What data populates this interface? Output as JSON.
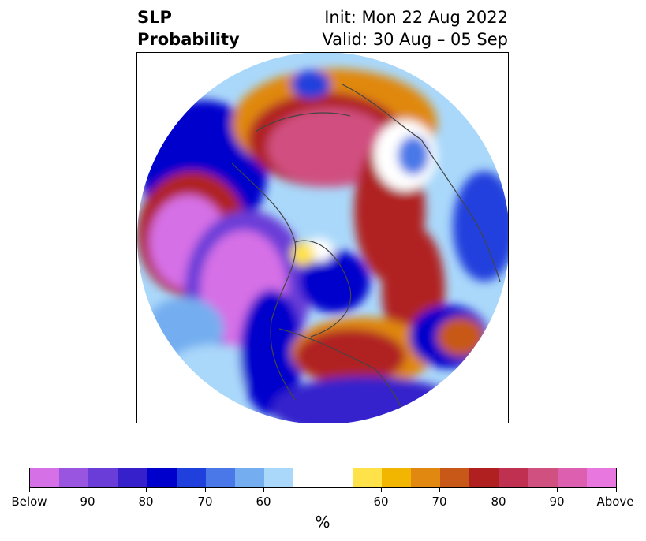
{
  "title": {
    "left_line1": "SLP",
    "left_line2": "Probability",
    "right_line1": "Init: Mon 22 Aug 2022",
    "right_line2": "Valid: 30 Aug – 05 Sep"
  },
  "colorbar": {
    "unit": "%",
    "ticks": [
      "Below",
      "90",
      "80",
      "70",
      "60",
      "60",
      "70",
      "80",
      "90",
      "Above"
    ],
    "colors": [
      "#d670e6",
      "#9a55e0",
      "#6a3cd8",
      "#3520cc",
      "#0000cc",
      "#2040dd",
      "#4a78e8",
      "#74aef0",
      "#aad8fa",
      "#ffffff",
      "#ffe24a",
      "#f2b600",
      "#e08810",
      "#c85818",
      "#b02020",
      "#c03050",
      "#d05080",
      "#dd60b0",
      "#e878e0"
    ]
  },
  "map": {
    "projection": "north-polar-stereographic",
    "field_colors": {
      "below_max": "#d670e6",
      "below_high": "#6a3cd8",
      "below_mid": "#0000cc",
      "below_low": "#74aef0",
      "near_normal": "#ffffff",
      "above_low": "#ffe24a",
      "above_mid": "#e08810",
      "above_high": "#b02020",
      "above_max": "#d05080"
    }
  }
}
